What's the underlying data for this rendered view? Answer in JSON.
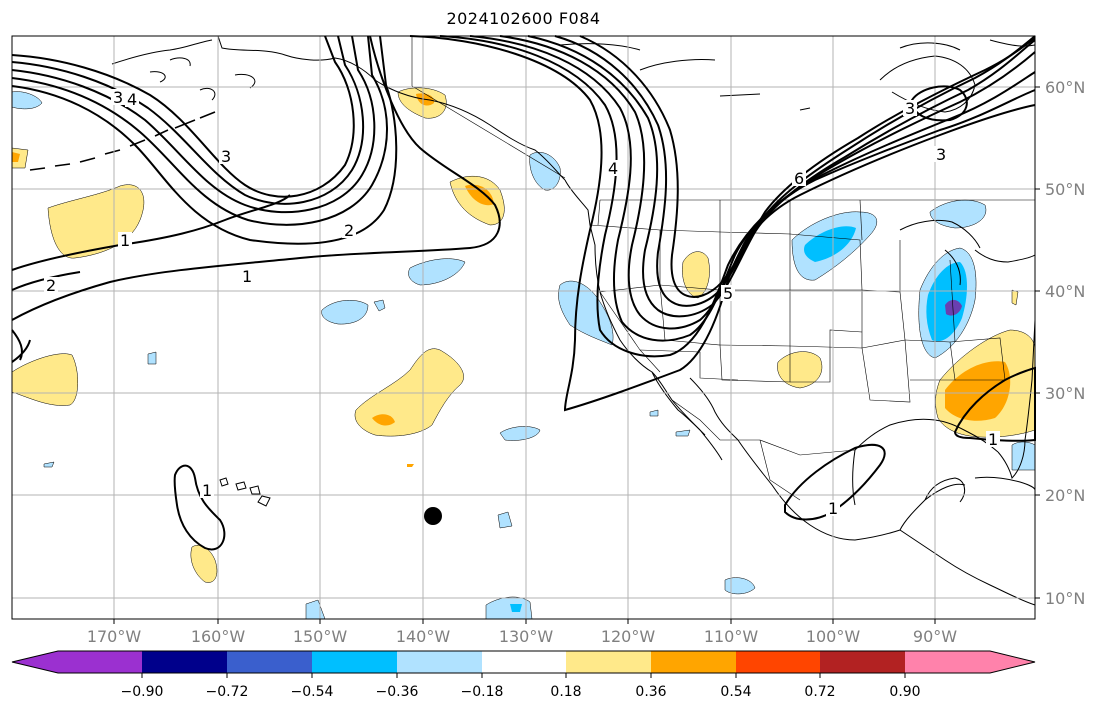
{
  "title": "2024102600 F084",
  "longitude_labels": [
    "170°W",
    "160°W",
    "150°W",
    "140°W",
    "130°W",
    "120°W",
    "110°W",
    "100°W",
    "90°W"
  ],
  "latitude_labels": [
    "60°N",
    "50°N",
    "40°N",
    "30°N",
    "20°N",
    "10°N"
  ],
  "colorbar": {
    "tick_labels": [
      "−0.90",
      "−0.72",
      "−0.54",
      "−0.36",
      "−0.18",
      "0.18",
      "0.36",
      "0.54",
      "0.72",
      "0.90"
    ],
    "colors": [
      "#9b30d0",
      "#00008b",
      "#3a5fcd",
      "#00bfff",
      "#b0e2ff",
      "#ffffff",
      "#ffe98a",
      "#ffa500",
      "#ff4500",
      "#b22222",
      "#ff82ab"
    ]
  },
  "contour_labels": {
    "a": "3",
    "b": "4",
    "c": "3",
    "d": "2",
    "e": "1",
    "f": "2",
    "g": "3",
    "h": "4",
    "i": "5",
    "j": "6",
    "k": "3",
    "l": "1",
    "m": "1",
    "n": "1",
    "o": "1"
  },
  "fill_colors": {
    "light_yellow": "#ffe98a",
    "orange": "#ffa500",
    "light_blue": "#b0e2ff",
    "blue": "#00bfff",
    "purple": "#6a3fb0"
  }
}
